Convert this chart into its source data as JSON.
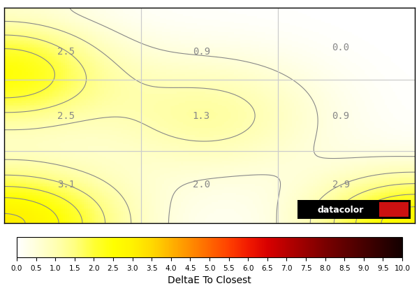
{
  "title": "DeltaE To Closest",
  "colorbar_ticks": [
    0.0,
    0.5,
    1.0,
    1.5,
    2.0,
    2.5,
    3.0,
    3.5,
    4.0,
    4.5,
    5.0,
    5.5,
    6.0,
    6.5,
    7.0,
    7.5,
    8.0,
    8.5,
    9.0,
    9.5,
    10.0
  ],
  "colormap_colors": [
    "#ffffff",
    "#fffff0",
    "#ffffe0",
    "#ffffc0",
    "#ffff99",
    "#ffff00",
    "#ffee00",
    "#ffdd00",
    "#ffcc00",
    "#ffbb00",
    "#ffaa00",
    "#ff9900",
    "#ff8800",
    "#ff6600",
    "#ff4400",
    "#ff2200",
    "#ee1100",
    "#dd0000",
    "#cc0000",
    "#aa0000",
    "#880000",
    "#660000",
    "#440000",
    "#220000",
    "#110000"
  ],
  "grid_color": "#cccccc",
  "contour_color": "#888888",
  "label_color": "#888888",
  "background_color": "#ffffff",
  "border_color": "#000000",
  "datacolor_text": "datacolor",
  "datacolor_text_color": "#ffffff",
  "datacolor_bg": "#000000",
  "datacolor_red": "#cc0000",
  "fig_width": 6.0,
  "fig_height": 4.1,
  "dpi": 100,
  "contour_labels": {
    "top_left": "2.5",
    "top_center": "0.9",
    "top_right": "0.0",
    "mid_left": "2.5",
    "mid_center": "1.3",
    "mid_right": "0.9",
    "bot_left": "3.1",
    "bot_center": "2.0",
    "bot_right": "2.9"
  }
}
